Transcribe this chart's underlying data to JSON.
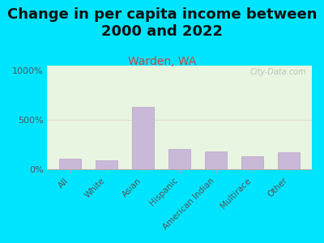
{
  "title": "Change in per capita income between\n2000 and 2022",
  "subtitle": "Warden, WA",
  "categories": [
    "All",
    "White",
    "Asian",
    "Hispanic",
    "American Indian",
    "Multirace",
    "Other"
  ],
  "values": [
    100,
    90,
    630,
    200,
    175,
    130,
    170
  ],
  "bar_color": "#c9b8d8",
  "bar_edge_color": "#b8a0cc",
  "yticks": [
    0,
    500,
    1000
  ],
  "ytick_labels": [
    "0%",
    "500%",
    "1000%"
  ],
  "ylim": [
    0,
    1050
  ],
  "title_fontsize": 13,
  "subtitle_fontsize": 10,
  "subtitle_color": "#cc4444",
  "background_outer": "#00e5ff",
  "plot_bg_top": "#e8f5e0",
  "plot_bg_bottom": "#f5f5e8",
  "watermark": "City-Data.com",
  "hline_y": 500,
  "hline_color": "#ddddcc"
}
